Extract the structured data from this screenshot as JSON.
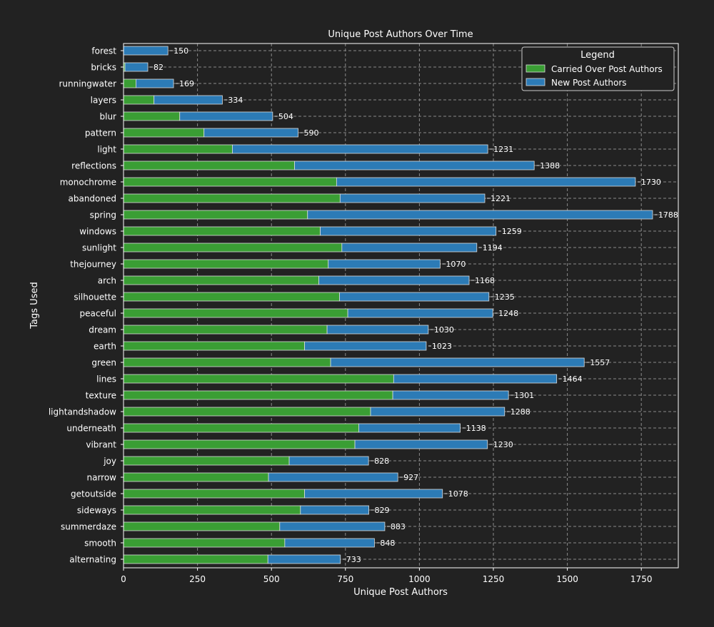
{
  "chart_data": {
    "type": "bar",
    "orientation": "horizontal",
    "stacked": true,
    "title": "Unique Post Authors Over Time",
    "xlabel": "Unique Post Authors",
    "ylabel": "Tags Used",
    "xlim": [
      0,
      1875
    ],
    "xticks": [
      0,
      250,
      500,
      750,
      1000,
      1250,
      1500,
      1750
    ],
    "grid": true,
    "legend": {
      "title": "Legend",
      "placement": "top-right",
      "entries": [
        "Carried Over Post Authors",
        "New Post Authors"
      ]
    },
    "categories": [
      "forest",
      "bricks",
      "runningwater",
      "layers",
      "blur",
      "pattern",
      "light",
      "reflections",
      "monochrome",
      "abandoned",
      "spring",
      "windows",
      "sunlight",
      "thejourney",
      "arch",
      "silhouette",
      "peaceful",
      "dream",
      "earth",
      "green",
      "lines",
      "texture",
      "lightandshadow",
      "underneath",
      "vibrant",
      "joy",
      "narrow",
      "getoutside",
      "sideways",
      "summerdaze",
      "smooth",
      "alternating"
    ],
    "series": [
      {
        "name": "Carried Over Post Authors",
        "color": "#3a9e34",
        "values": [
          0,
          5,
          42,
          103,
          190,
          272,
          368,
          578,
          720,
          732,
          622,
          665,
          738,
          692,
          660,
          730,
          758,
          688,
          612,
          700,
          913,
          910,
          835,
          795,
          782,
          560,
          490,
          612,
          598,
          528,
          545,
          488
        ]
      },
      {
        "name": "New Post Authors",
        "color": "#2c7bb6",
        "values": [
          150,
          77,
          127,
          231,
          314,
          318,
          863,
          810,
          1010,
          489,
          1166,
          594,
          456,
          378,
          508,
          505,
          490,
          342,
          411,
          857,
          551,
          391,
          453,
          343,
          448,
          268,
          437,
          466,
          231,
          355,
          303,
          245
        ]
      }
    ],
    "totals": [
      "150",
      "82",
      "169",
      "334",
      "504",
      "590",
      "1231",
      "1388",
      "1730",
      "1221",
      "1788",
      "1259",
      "1194",
      "1070",
      "1168",
      "1235",
      "1248",
      "1030",
      "1023",
      "1557",
      "1464",
      "1301",
      "1288",
      "1138",
      "1230",
      "828",
      "927",
      "1078",
      "829",
      "883",
      "848",
      "733"
    ]
  }
}
